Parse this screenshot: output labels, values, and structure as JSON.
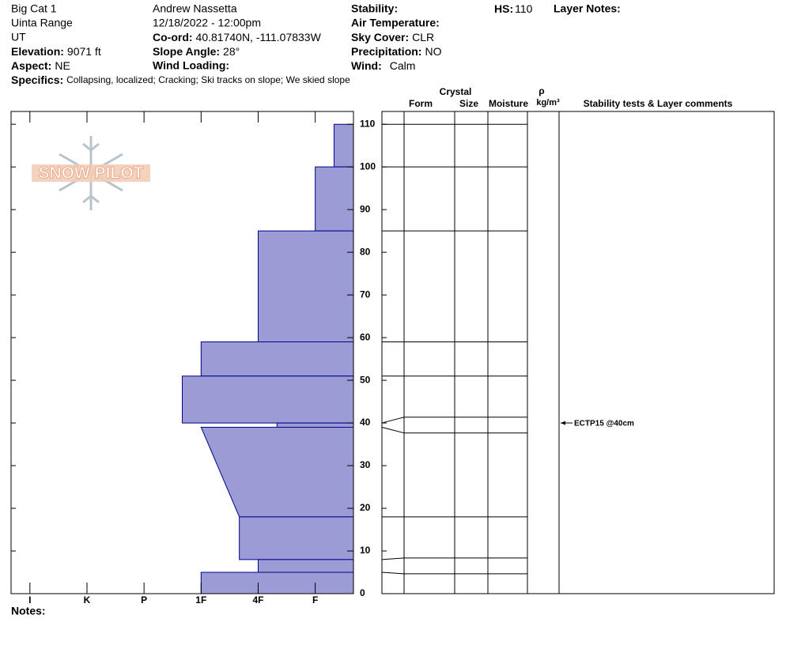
{
  "header": {
    "site": "Big Cat 1",
    "range": "Uinta Range",
    "state": "UT",
    "elevation": {
      "label": "Elevation:",
      "value": "9071 ft"
    },
    "aspect": {
      "label": "Aspect:",
      "value": "NE"
    },
    "observer": "Andrew Nassetta",
    "datetime": "12/18/2022 - 12:00pm",
    "coord": {
      "label": "Co-ord:",
      "value": "40.81740N, -111.07833W"
    },
    "slope": {
      "label": "Slope Angle:",
      "value": "28°"
    },
    "wind_loading": {
      "label": "Wind Loading:"
    },
    "stability": {
      "label": "Stability:"
    },
    "air_temp": {
      "label": "Air Temperature:"
    },
    "sky": {
      "label": "Sky Cover:",
      "value": "CLR"
    },
    "precip": {
      "label": "Precipitation:",
      "value": "NO"
    },
    "wind": {
      "label": "Wind:",
      "value": "Calm"
    },
    "hs": {
      "label": "HS:",
      "value": 110
    },
    "layer_notes": {
      "label": "Layer Notes:"
    },
    "specifics": {
      "label": "Specifics:",
      "value": "Collapsing, localized;  Cracking;  Ski tracks on slope;  We skied slope"
    }
  },
  "logo": "SNOW PILOT",
  "notes_label": "Notes:",
  "chart_data": {
    "type": "snow-profile",
    "ylim": [
      0,
      113
    ],
    "yticks": [
      0,
      10,
      20,
      30,
      40,
      50,
      60,
      70,
      80,
      90,
      100,
      110
    ],
    "xlim": [
      0.67,
      6.67
    ],
    "xticks": [
      {
        "value": 1,
        "label": "I"
      },
      {
        "value": 2,
        "label": "K"
      },
      {
        "value": 3,
        "label": "P"
      },
      {
        "value": 4,
        "label": "1F"
      },
      {
        "value": 5,
        "label": "4F"
      },
      {
        "value": 6,
        "label": "F"
      }
    ],
    "color": "#9b9bd6",
    "edge_color": "#00008b",
    "layers": [
      {
        "top": 110,
        "bottom": 100,
        "hardness": 6.33
      },
      {
        "top": 100,
        "bottom": 85,
        "hardness": 6
      },
      {
        "top": 85,
        "bottom": 59,
        "hardness": 5
      },
      {
        "top": 59,
        "bottom": 51,
        "hardness": 4
      },
      {
        "top": 51,
        "bottom": 40,
        "hardness": 3.67
      },
      {
        "top": 40,
        "bottom": 39,
        "hardness": 5.33
      },
      {
        "top": 39,
        "bottom": 18,
        "hardness": 4,
        "hardness_bottom": 4.67
      },
      {
        "top": 18,
        "bottom": 8,
        "hardness": 4.67
      },
      {
        "top": 8,
        "bottom": 5,
        "hardness": 5
      },
      {
        "top": 5,
        "bottom": 0,
        "hardness": 4
      }
    ],
    "table_headers": {
      "crystal": "Crystal",
      "form": "Form",
      "size": "Size",
      "moisture": "Moisture",
      "rho": "ρ",
      "density_unit": "kg/m³",
      "comments": "Stability tests & Layer comments"
    },
    "tests": [
      {
        "depth": 40,
        "label": "ECTP15 @40cm"
      }
    ]
  }
}
